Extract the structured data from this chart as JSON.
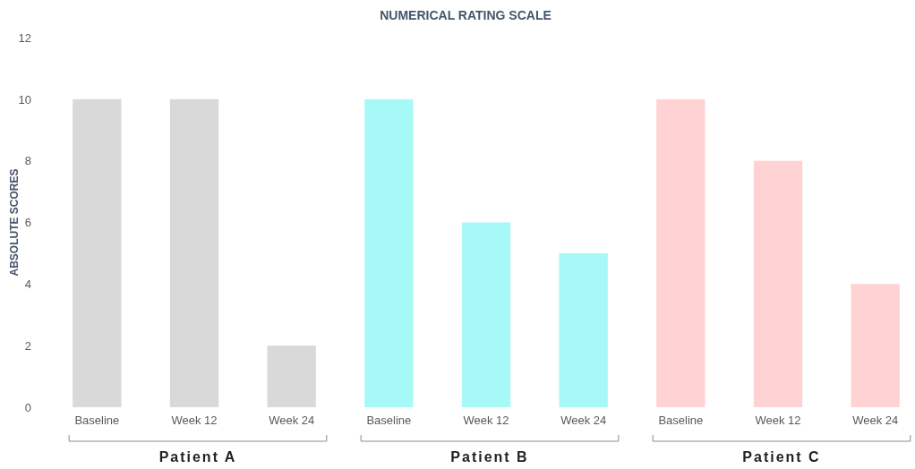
{
  "chart_data": {
    "type": "bar",
    "title": "NUMERICAL RATING SCALE",
    "ylabel": "ABSOLUTE SCORES",
    "categories": [
      "Baseline",
      "Week 12",
      "Week 24",
      "Baseline",
      "Week 12",
      "Week 24",
      "Baseline",
      "Week 12",
      "Week 24"
    ],
    "values": [
      10,
      10,
      2,
      10,
      6,
      5,
      10,
      8,
      4
    ],
    "colors": [
      "#d9d9d9",
      "#d9d9d9",
      "#d9d9d9",
      "#a6f9f7",
      "#a6f9f7",
      "#a6f9f7",
      "#ffd3d3",
      "#ffd3d3",
      "#ffd3d3"
    ],
    "ylim": [
      0,
      12
    ],
    "yticks": [
      0,
      2,
      4,
      6,
      8,
      10,
      12
    ],
    "grid": false,
    "annotations": [
      "Patient A",
      "Patient B",
      "Patient C"
    ]
  }
}
